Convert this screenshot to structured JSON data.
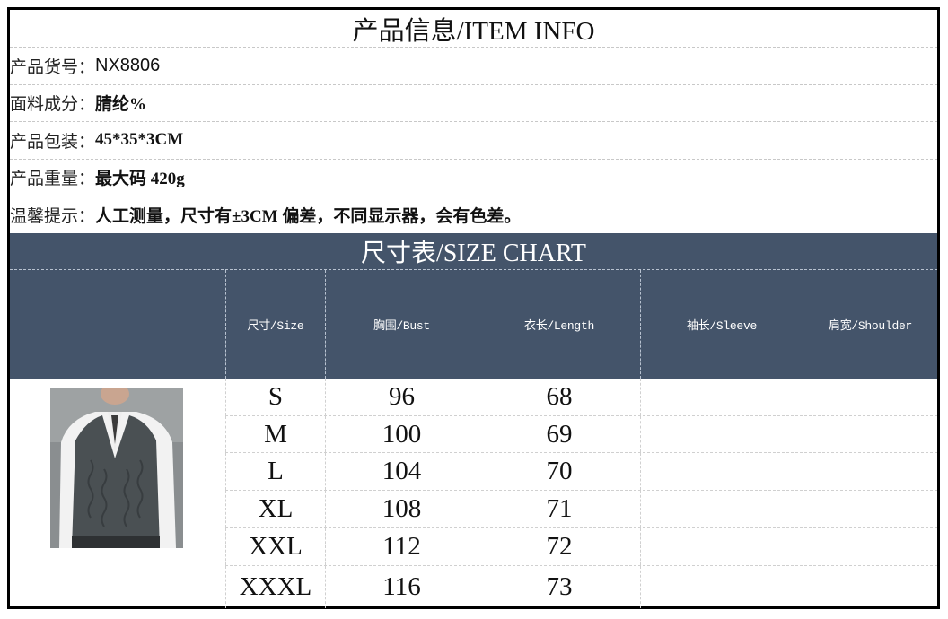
{
  "title": "产品信息/ITEM INFO",
  "info": [
    {
      "label": "产品货号：",
      "value": "NX8806"
    },
    {
      "label": "面料成分：",
      "value": "腈纶%"
    },
    {
      "label": "产品包装：",
      "value": "45*35*3CM"
    },
    {
      "label": "产品重量：",
      "value": "最大码 420g"
    },
    {
      "label": "温馨提示：",
      "value": "人工测量，尺寸有±3CM 偏差，不同显示器，会有色差。"
    }
  ],
  "size_chart": {
    "title": "尺寸表/SIZE CHART",
    "headers": [
      "尺寸/Size",
      "胸围/Bust",
      "衣长/Length",
      "袖长/Sleeve",
      "肩宽/Shoulder"
    ],
    "rows": [
      [
        "S",
        "96",
        "68",
        "",
        ""
      ],
      [
        "M",
        "100",
        "69",
        "",
        ""
      ],
      [
        "L",
        "104",
        "70",
        "",
        ""
      ],
      [
        "XL",
        "108",
        "71",
        "",
        ""
      ],
      [
        "XXL",
        "112",
        "72",
        "",
        ""
      ],
      [
        "XXXL",
        "116",
        "73",
        "",
        ""
      ]
    ]
  },
  "colors": {
    "header_bg": "#44546a"
  }
}
